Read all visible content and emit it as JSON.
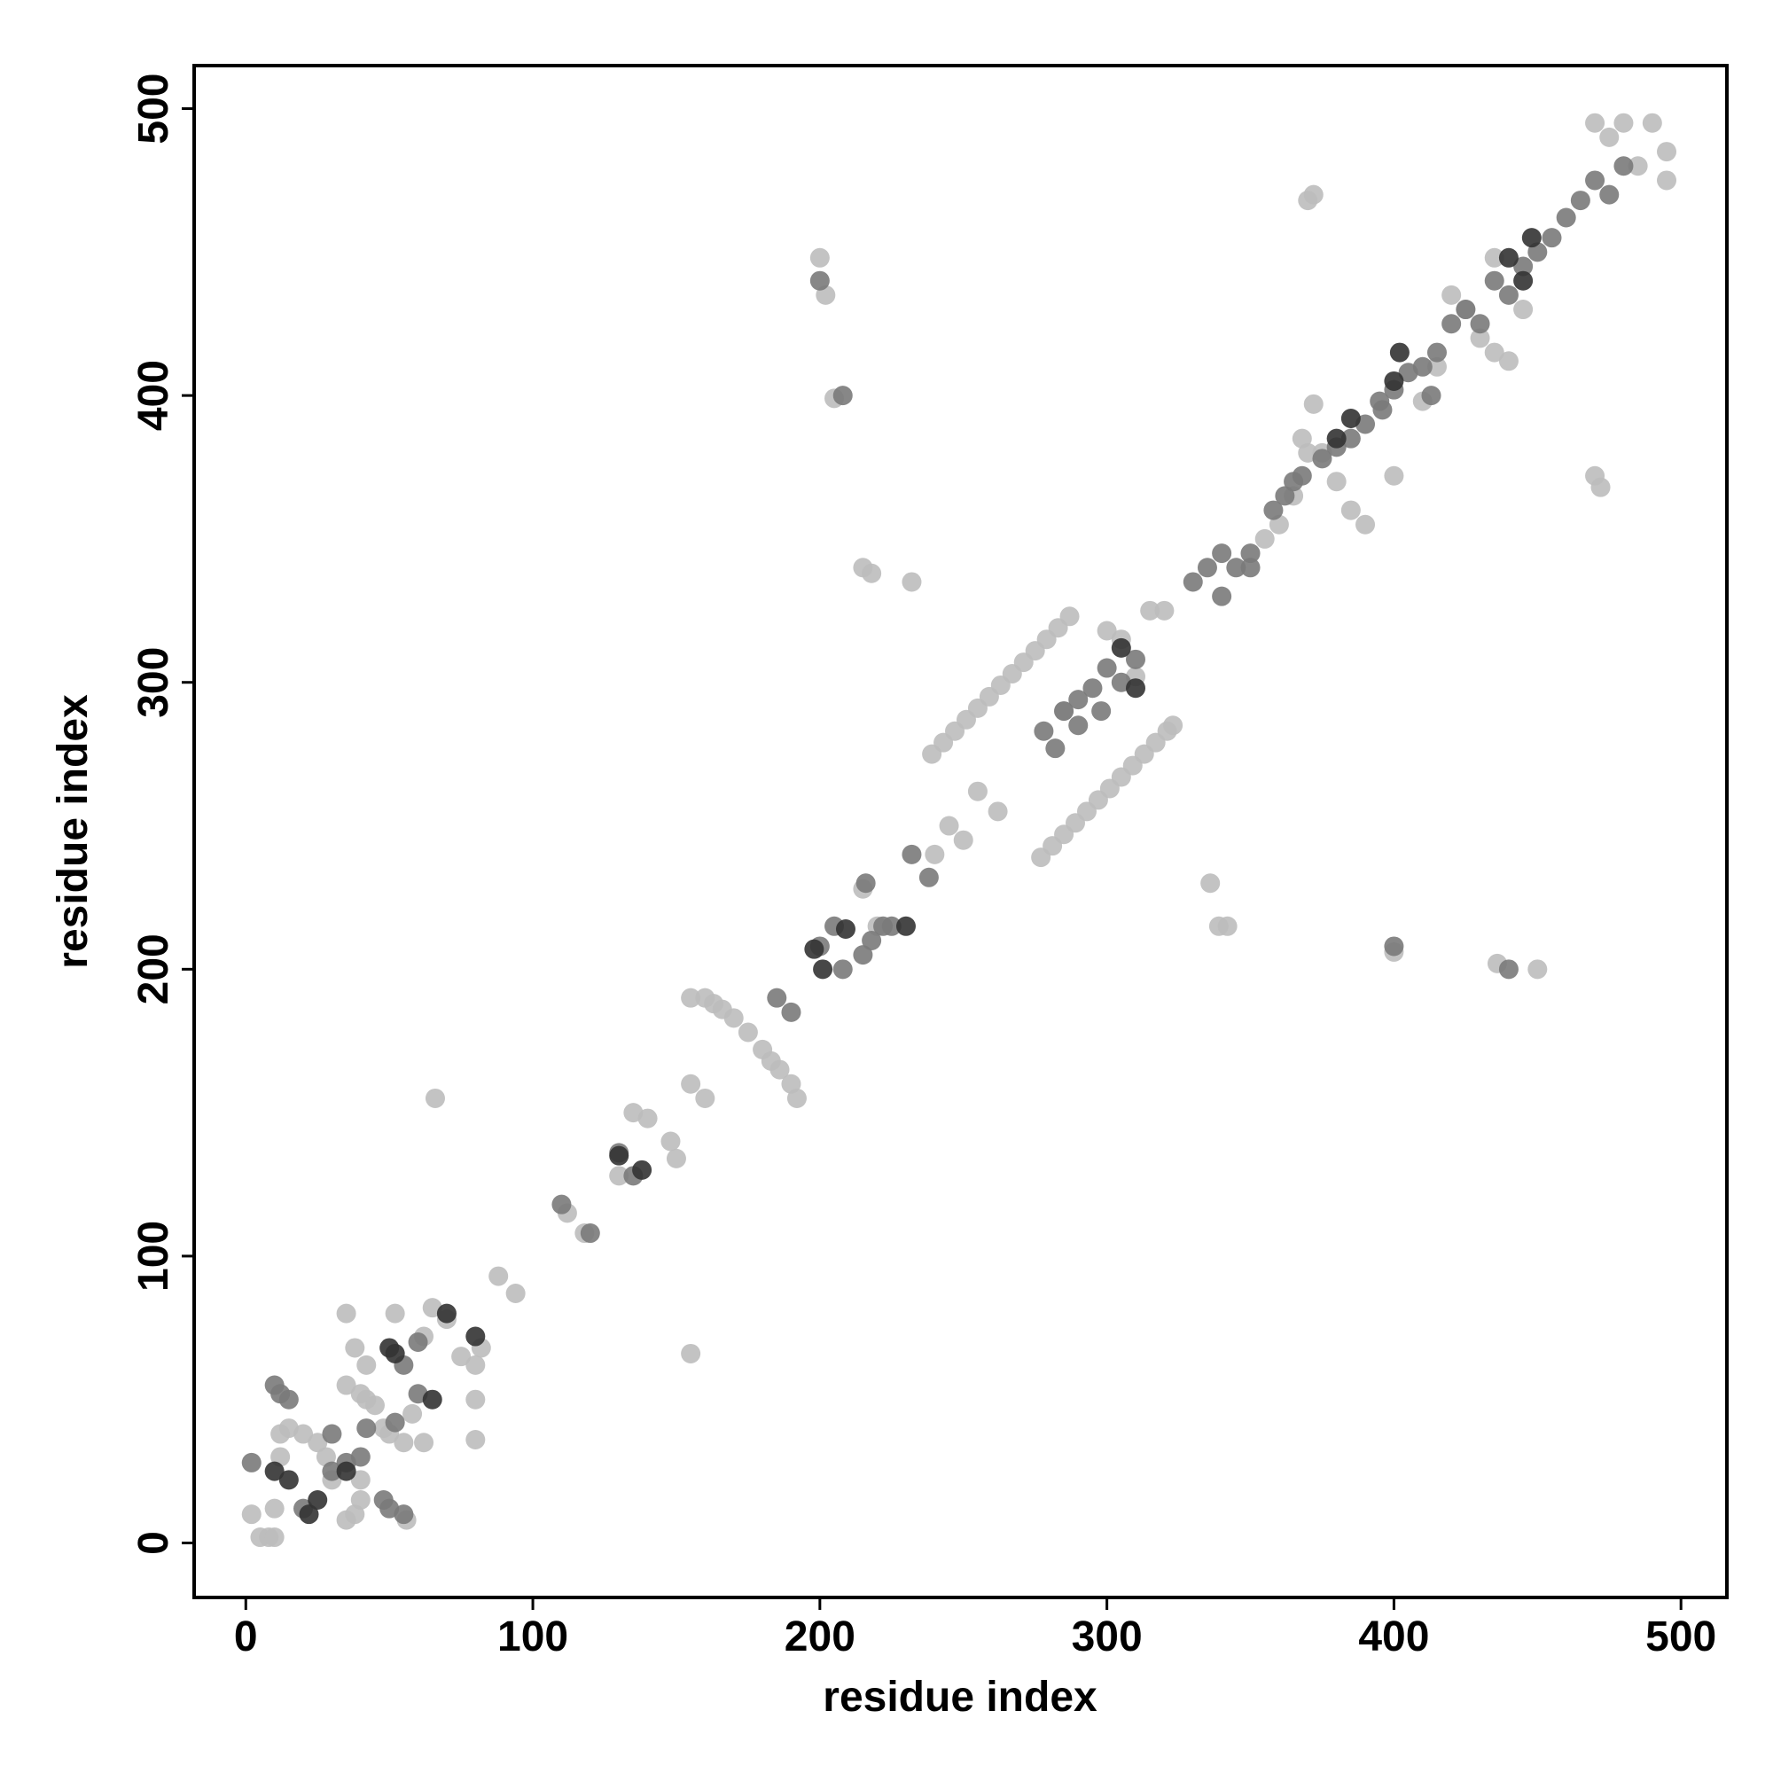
{
  "chart_data": {
    "type": "scatter",
    "xlabel": "residue index",
    "ylabel": "residue index",
    "xlim": [
      -18,
      516
    ],
    "ylim": [
      -19,
      515
    ],
    "xticks": [
      0,
      100,
      200,
      300,
      400,
      500
    ],
    "yticks": [
      0,
      100,
      200,
      300,
      400,
      500
    ],
    "series": [
      {
        "color": "#bdbdbd",
        "x": [
          2,
          5,
          8,
          10,
          12,
          12,
          15,
          20,
          25,
          28,
          30,
          35,
          38,
          40,
          40,
          35,
          40,
          42,
          45,
          38,
          42,
          48,
          50,
          55,
          52,
          58,
          62,
          65,
          70,
          75,
          80,
          82,
          80,
          80,
          35,
          62,
          56,
          88,
          94,
          10,
          112,
          118,
          130,
          135,
          140,
          148,
          150,
          155,
          160,
          155,
          155,
          66,
          160,
          163,
          166,
          170,
          175,
          180,
          183,
          186,
          190,
          192,
          200,
          202,
          205,
          215,
          218,
          232,
          240,
          245,
          250,
          255,
          262,
          215,
          220,
          239,
          243,
          247,
          251,
          255,
          259,
          263,
          267,
          271,
          275,
          279,
          283,
          287,
          277,
          281,
          285,
          289,
          293,
          297,
          301,
          305,
          309,
          313,
          317,
          321,
          323,
          285,
          300,
          305,
          310,
          315,
          320,
          336,
          339,
          342,
          355,
          360,
          365,
          368,
          370,
          370,
          372,
          375,
          380,
          385,
          390,
          372,
          400,
          400,
          410,
          415,
          420,
          425,
          430,
          435,
          440,
          435,
          445,
          470,
          472,
          470,
          480,
          490,
          495,
          495,
          485,
          475,
          436,
          450
        ],
        "values": [
          10,
          2,
          2,
          12,
          30,
          38,
          40,
          38,
          35,
          30,
          22,
          8,
          10,
          15,
          22,
          55,
          52,
          50,
          48,
          68,
          62,
          40,
          38,
          35,
          80,
          45,
          72,
          82,
          78,
          65,
          62,
          68,
          50,
          36,
          80,
          35,
          8,
          93,
          87,
          2,
          115,
          108,
          128,
          150,
          148,
          140,
          134,
          160,
          155,
          190,
          66,
          155,
          190,
          188,
          186,
          183,
          178,
          172,
          168,
          165,
          160,
          155,
          448,
          435,
          399,
          340,
          338,
          335,
          240,
          250,
          245,
          262,
          255,
          228,
          215,
          275,
          279,
          283,
          287,
          291,
          295,
          299,
          303,
          307,
          311,
          315,
          319,
          323,
          239,
          243,
          247,
          251,
          255,
          259,
          263,
          267,
          271,
          275,
          279,
          283,
          285,
          290,
          318,
          315,
          302,
          325,
          325,
          230,
          215,
          215,
          350,
          355,
          365,
          385,
          380,
          468,
          470,
          380,
          370,
          360,
          355,
          397,
          372,
          206,
          398,
          410,
          435,
          430,
          420,
          415,
          412,
          448,
          430,
          372,
          368,
          495,
          495,
          495,
          485,
          475,
          480,
          490,
          202,
          200
        ]
      },
      {
        "color": "#7a7a7a",
        "x": [
          2,
          10,
          12,
          15,
          20,
          30,
          35,
          42,
          48,
          50,
          55,
          52,
          55,
          60,
          40,
          30,
          60,
          110,
          120,
          130,
          135,
          185,
          190,
          200,
          205,
          208,
          215,
          218,
          222,
          216,
          225,
          232,
          238,
          200,
          208,
          278,
          282,
          285,
          290,
          295,
          300,
          305,
          310,
          298,
          290,
          330,
          335,
          340,
          345,
          350,
          358,
          362,
          365,
          368,
          375,
          380,
          385,
          390,
          395,
          400,
          405,
          410,
          415,
          420,
          425,
          430,
          435,
          440,
          445,
          450,
          455,
          460,
          465,
          470,
          475,
          480,
          400,
          440,
          396,
          413,
          350,
          340
        ],
        "values": [
          28,
          55,
          52,
          50,
          12,
          25,
          28,
          40,
          15,
          12,
          10,
          42,
          62,
          52,
          30,
          38,
          70,
          118,
          108,
          136,
          128,
          190,
          185,
          208,
          215,
          200,
          205,
          210,
          215,
          230,
          215,
          240,
          232,
          440,
          400,
          283,
          277,
          290,
          294,
          298,
          305,
          300,
          308,
          290,
          285,
          335,
          340,
          345,
          340,
          345,
          360,
          365,
          370,
          372,
          378,
          382,
          385,
          390,
          398,
          402,
          408,
          410,
          415,
          425,
          430,
          425,
          440,
          435,
          445,
          450,
          455,
          462,
          468,
          475,
          470,
          480,
          208,
          200,
          395,
          400,
          340,
          330
        ]
      },
      {
        "color": "#333333",
        "x": [
          15,
          25,
          22,
          35,
          50,
          52,
          65,
          70,
          80,
          10,
          130,
          138,
          198,
          201,
          209,
          230,
          305,
          310,
          380,
          385,
          400,
          402,
          440,
          448,
          445
        ],
        "values": [
          22,
          15,
          10,
          25,
          68,
          66,
          50,
          80,
          72,
          25,
          135,
          130,
          207,
          200,
          214,
          215,
          312,
          298,
          385,
          392,
          405,
          415,
          448,
          455,
          440
        ]
      }
    ]
  }
}
